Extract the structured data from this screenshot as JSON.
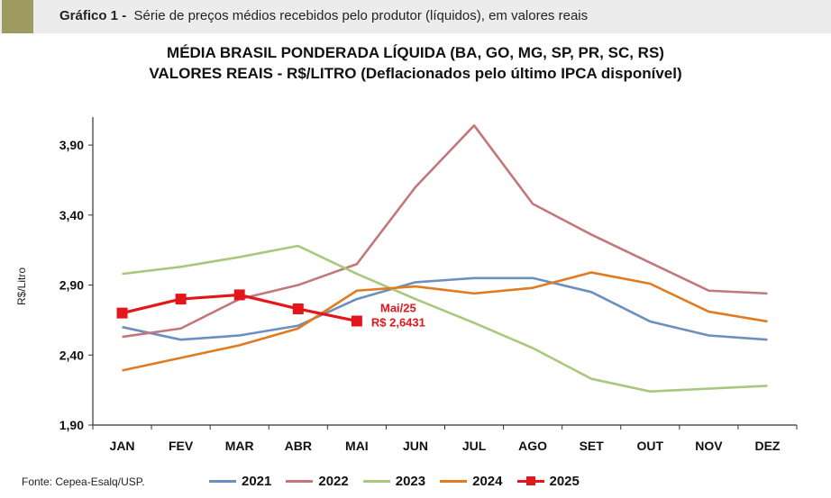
{
  "header": {
    "label": "Gráfico 1 -",
    "caption": "Série de preços médios recebidos pelo produtor (líquidos), em valores reais"
  },
  "source": "Fonte: Cepea-Esalq/USP.",
  "chart_data": {
    "type": "line",
    "title": "MÉDIA BRASIL PONDERADA LÍQUIDA (BA, GO, MG, SP, PR, SC, RS)",
    "subtitle": "VALORES REAIS - R$/LITRO (Deflacionados  pelo último IPCA disponível)",
    "xlabel": "",
    "ylabel": "R$/Litro",
    "categories": [
      "JAN",
      "FEV",
      "MAR",
      "ABR",
      "MAI",
      "JUN",
      "JUL",
      "AGO",
      "SET",
      "OUT",
      "NOV",
      "DEZ"
    ],
    "ylim": [
      1.9,
      4.1
    ],
    "yticks": [
      1.9,
      2.4,
      2.9,
      3.4,
      3.9
    ],
    "ytick_labels": [
      "1,90",
      "2,40",
      "2,90",
      "3,40",
      "3,90"
    ],
    "grid": false,
    "legend_position": "bottom",
    "series": [
      {
        "name": "2021",
        "color": "#6b8fbf",
        "marker": "none",
        "values": [
          2.6,
          2.51,
          2.54,
          2.61,
          2.8,
          2.92,
          2.95,
          2.95,
          2.85,
          2.64,
          2.54,
          2.51
        ]
      },
      {
        "name": "2022",
        "color": "#c2777a",
        "marker": "none",
        "values": [
          2.53,
          2.59,
          2.8,
          2.9,
          3.05,
          3.6,
          4.04,
          3.48,
          3.26,
          3.06,
          2.86,
          2.84
        ]
      },
      {
        "name": "2023",
        "color": "#a9c77d",
        "marker": "none",
        "values": [
          2.98,
          3.03,
          3.1,
          3.18,
          2.98,
          2.8,
          2.63,
          2.45,
          2.23,
          2.14,
          2.16,
          2.18
        ]
      },
      {
        "name": "2024",
        "color": "#e07b1f",
        "marker": "none",
        "values": [
          2.29,
          2.38,
          2.47,
          2.59,
          2.86,
          2.89,
          2.84,
          2.88,
          2.99,
          2.91,
          2.71,
          2.64
        ]
      },
      {
        "name": "2025",
        "color": "#e3161b",
        "marker": "square",
        "values": [
          2.7,
          2.8,
          2.83,
          2.73,
          2.6431,
          null,
          null,
          null,
          null,
          null,
          null,
          null
        ]
      }
    ],
    "annotations": [
      {
        "series": "2025",
        "category": "MAI",
        "line1": "Mai/25",
        "line2": "R$ 2,6431",
        "color": "#e3161b"
      }
    ]
  }
}
